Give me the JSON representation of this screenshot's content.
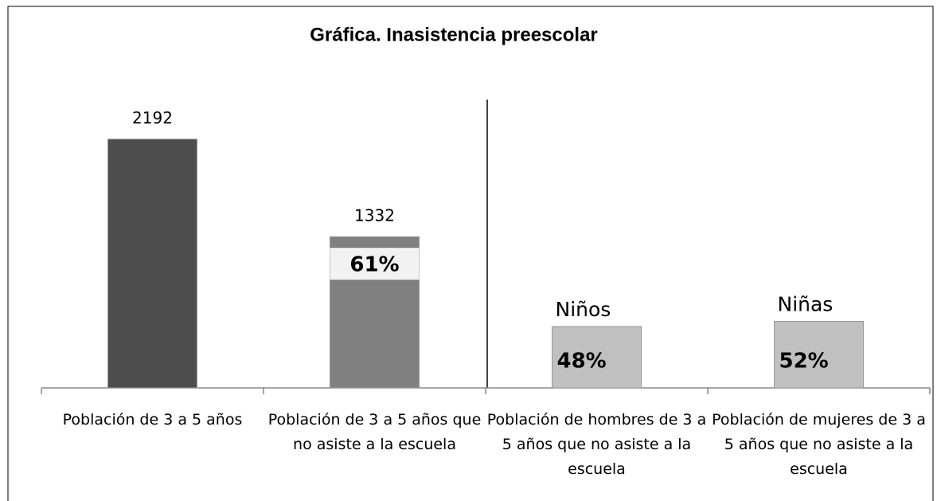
{
  "chart_data": {
    "type": "bar",
    "title": "Gráfica. Inasistencia preescolar",
    "categories": [
      "Población de 3 a 5 años",
      "Población de 3 a 5 años que no asiste a la escuela",
      "Población de hombres de 3 a 5 años que no asiste a la escuela",
      "Población de mujeres de 3 a 5 años que no asiste a la escuela"
    ],
    "series": [
      {
        "values": [
          2192,
          1332,
          null,
          null
        ],
        "colors": [
          "#4d4d4d",
          "#808080",
          null,
          null
        ]
      },
      {
        "values": [
          null,
          null,
          48,
          52
        ],
        "value_labels": [
          null,
          null,
          "48%",
          "52%"
        ],
        "names": [
          null,
          null,
          "Niños",
          "Niñas"
        ],
        "colors": [
          null,
          null,
          "#c0c0c0",
          "#c0c0c0"
        ],
        "axis": "y2"
      }
    ],
    "annotations": [
      {
        "category": 1,
        "text": "61%"
      }
    ],
    "ylim": [
      0,
      2400
    ],
    "y2lim": [
      0,
      213
    ]
  }
}
